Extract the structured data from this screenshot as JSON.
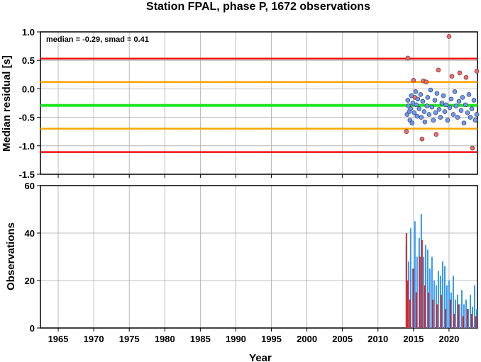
{
  "chart_data": [
    {
      "type": "scatter",
      "title": "Station FPAL, phase P, 1672 observations",
      "xlabel": "",
      "ylabel": "Median residual [s]",
      "annotation": "median = -0.29, smad = 0.41",
      "xlim": [
        1962.5,
        2024.0
      ],
      "ylim": [
        -1.5,
        1.0
      ],
      "yticks": [
        "1.0",
        "0.5",
        "0.0",
        "-0.5",
        "-1.0",
        "-1.5"
      ],
      "ytick_values": [
        1.0,
        0.5,
        0.0,
        -0.5,
        -1.0,
        -1.5
      ],
      "grid": true,
      "reference_lines": [
        {
          "name": "median",
          "y": -0.29,
          "color": "#22e622"
        },
        {
          "name": "median + 1 smad",
          "y": 0.12,
          "color": "#ffa500"
        },
        {
          "name": "median - 1 smad",
          "y": -0.7,
          "color": "#ffa500"
        },
        {
          "name": "median + 2 smad",
          "y": 0.53,
          "color": "#ee1111"
        },
        {
          "name": "median - 2 smad",
          "y": -1.11,
          "color": "#ee1111"
        }
      ],
      "series": [
        {
          "color": "#ff6666",
          "points": [
            [
              2014.0,
              -0.75
            ],
            [
              2014.2,
              0.54
            ],
            [
              2015.0,
              0.15
            ],
            [
              2015.2,
              -0.15
            ],
            [
              2016.2,
              -0.88
            ],
            [
              2016.4,
              0.14
            ],
            [
              2016.8,
              0.12
            ],
            [
              2018.2,
              -0.8
            ],
            [
              2018.5,
              0.33
            ],
            [
              2020.0,
              0.92
            ],
            [
              2020.4,
              0.22
            ],
            [
              2021.5,
              0.28
            ],
            [
              2023.3,
              -1.04
            ],
            [
              2023.9,
              0.31
            ],
            [
              2022.4,
              0.2
            ]
          ]
        },
        {
          "color": "#6699ff",
          "points": [
            [
              2014.1,
              -0.45
            ],
            [
              2014.2,
              -0.2
            ],
            [
              2014.3,
              -0.3
            ],
            [
              2014.4,
              -0.4
            ],
            [
              2014.5,
              -0.55
            ],
            [
              2014.6,
              -0.35
            ],
            [
              2014.7,
              -0.12
            ],
            [
              2014.8,
              -0.6
            ],
            [
              2014.9,
              -0.25
            ],
            [
              2015.1,
              -0.42
            ],
            [
              2015.3,
              -0.05
            ],
            [
              2015.4,
              -0.28
            ],
            [
              2015.5,
              -0.48
            ],
            [
              2015.6,
              -0.18
            ],
            [
              2015.8,
              -0.35
            ],
            [
              2016.0,
              -0.1
            ],
            [
              2016.1,
              -0.5
            ],
            [
              2016.3,
              -0.22
            ],
            [
              2016.5,
              -0.4
            ],
            [
              2016.6,
              -0.58
            ],
            [
              2016.9,
              -0.3
            ],
            [
              2017.0,
              -0.15
            ],
            [
              2017.2,
              -0.45
            ],
            [
              2017.4,
              -0.02
            ],
            [
              2017.6,
              -0.32
            ],
            [
              2017.8,
              -0.55
            ],
            [
              2018.0,
              -0.2
            ],
            [
              2018.1,
              -0.42
            ],
            [
              2018.3,
              -0.08
            ],
            [
              2018.6,
              -0.36
            ],
            [
              2018.8,
              -0.5
            ],
            [
              2019.0,
              -0.25
            ],
            [
              2019.2,
              -0.12
            ],
            [
              2019.4,
              -0.4
            ],
            [
              2019.6,
              -0.28
            ],
            [
              2019.8,
              -0.55
            ],
            [
              2020.1,
              -0.33
            ],
            [
              2020.3,
              -0.18
            ],
            [
              2020.6,
              -0.45
            ],
            [
              2020.8,
              -0.05
            ],
            [
              2021.0,
              -0.3
            ],
            [
              2021.2,
              -0.5
            ],
            [
              2021.4,
              -0.22
            ],
            [
              2021.7,
              -0.38
            ],
            [
              2021.9,
              -0.15
            ],
            [
              2022.1,
              -0.6
            ],
            [
              2022.3,
              -0.28
            ],
            [
              2022.6,
              -0.42
            ],
            [
              2022.8,
              -0.1
            ],
            [
              2023.0,
              -0.5
            ],
            [
              2023.2,
              -0.35
            ],
            [
              2023.5,
              -0.2
            ],
            [
              2023.7,
              -0.55
            ],
            [
              2023.9,
              -0.45
            ]
          ]
        }
      ]
    },
    {
      "type": "bar",
      "title": "",
      "xlabel": "Year",
      "ylabel": "Observations",
      "xlim": [
        1962.5,
        2024.0
      ],
      "ylim": [
        0,
        60
      ],
      "yticks": [
        "60",
        "40",
        "20",
        "0"
      ],
      "ytick_values": [
        60,
        40,
        20,
        0
      ],
      "xticks": [
        "1965",
        "1970",
        "1975",
        "1980",
        "1985",
        "1990",
        "1995",
        "2000",
        "2005",
        "2010",
        "2015",
        "2020"
      ],
      "xtick_values": [
        1965,
        1970,
        1975,
        1980,
        1985,
        1990,
        1995,
        2000,
        2005,
        2010,
        2015,
        2020
      ],
      "grid": true,
      "series": [
        {
          "color": "#3399ee",
          "x": [
            2014.0,
            2014.3,
            2014.6,
            2014.9,
            2015.2,
            2015.5,
            2015.8,
            2016.1,
            2016.4,
            2016.7,
            2017.0,
            2017.3,
            2017.6,
            2017.9,
            2018.2,
            2018.5,
            2018.8,
            2019.1,
            2019.4,
            2019.7,
            2020.0,
            2020.3,
            2020.6,
            2020.9,
            2021.2,
            2021.5,
            2021.8,
            2022.1,
            2022.4,
            2022.7,
            2023.0,
            2023.3,
            2023.6,
            2023.9
          ],
          "values": [
            35,
            28,
            42,
            25,
            45,
            30,
            38,
            48,
            30,
            35,
            33,
            25,
            30,
            20,
            18,
            24,
            22,
            28,
            26,
            18,
            20,
            15,
            22,
            12,
            14,
            10,
            16,
            10,
            12,
            8,
            14,
            9,
            18,
            8
          ]
        },
        {
          "color": "#dd2222",
          "x": [
            2014.0,
            2014.2,
            2014.5,
            2015.0,
            2015.4,
            2015.9,
            2016.2,
            2016.6,
            2017.1,
            2017.7,
            2018.3,
            2018.9,
            2019.5,
            2020.2,
            2020.7,
            2021.3,
            2022.0,
            2022.6,
            2023.2,
            2023.8
          ],
          "values": [
            40,
            20,
            12,
            25,
            15,
            30,
            37,
            18,
            15,
            12,
            10,
            14,
            8,
            12,
            6,
            10,
            5,
            8,
            6,
            5
          ]
        }
      ]
    }
  ]
}
